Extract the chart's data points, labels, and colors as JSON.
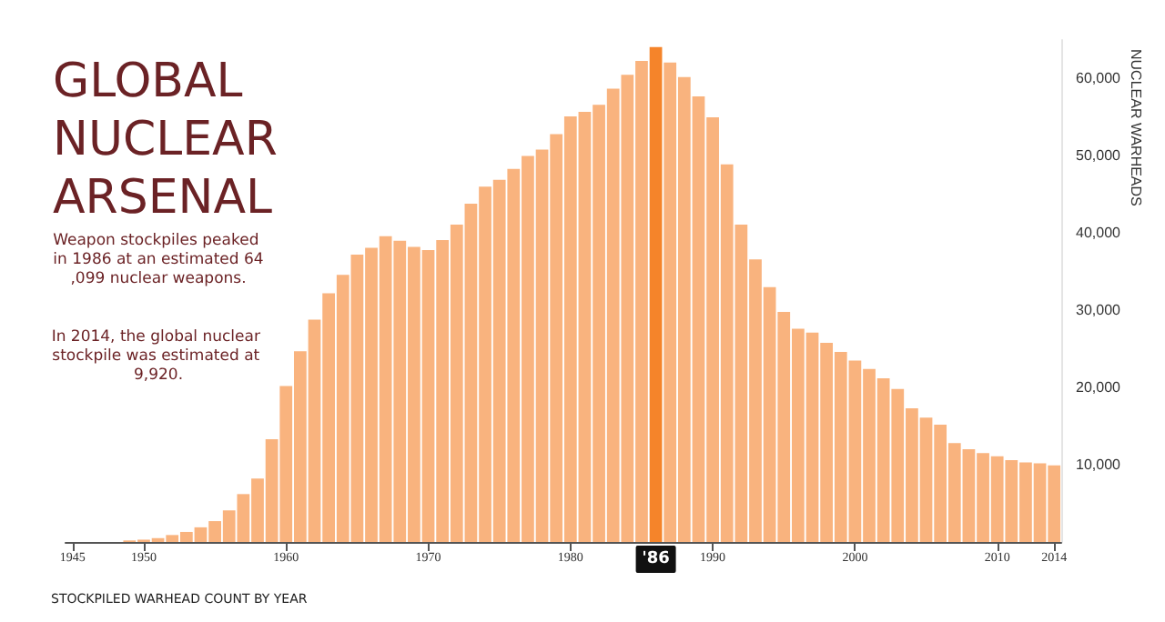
{
  "chart_data": {
    "type": "bar",
    "title": "GLOBAL\nNUCLEAR\nARSENAL",
    "ylabel": "NUCLEAR WARHEADS",
    "annotations": [
      "Weapon stockpiles peaked in 1986 at an estimated 64,099 nuclear weapons.",
      "In 2014, the global nuclear stockpile was estimated at 9,920.",
      "STOCKPILED WARHEAD COUNT BY YEAR",
      "'86"
    ],
    "categories": [
      "1945",
      null,
      null,
      null,
      null,
      "1950",
      null,
      null,
      null,
      null,
      null,
      null,
      null,
      null,
      null,
      "1960",
      null,
      null,
      null,
      null,
      null,
      null,
      null,
      null,
      null,
      "1970",
      null,
      null,
      null,
      null,
      null,
      null,
      null,
      null,
      null,
      "1980",
      null,
      null,
      null,
      null,
      null,
      null,
      null,
      null,
      null,
      "1990",
      null,
      null,
      null,
      null,
      null,
      null,
      null,
      null,
      null,
      "2000",
      null,
      null,
      null,
      null,
      null,
      null,
      null,
      null,
      null,
      "2010",
      null,
      null,
      null,
      "2014"
    ],
    "values": [
      0,
      0,
      0,
      0,
      200,
      300,
      500,
      900,
      1300,
      1900,
      2700,
      4100,
      6200,
      8200,
      13300,
      20200,
      24700,
      28800,
      32200,
      34600,
      37200,
      38100,
      39600,
      39000,
      38200,
      37800,
      39100,
      41100,
      43800,
      46000,
      46900,
      48300,
      50000,
      50800,
      52800,
      55100,
      55700,
      56600,
      58700,
      60500,
      62300,
      64099,
      62100,
      60200,
      57700,
      55000,
      48900,
      41100,
      36600,
      33000,
      29800,
      27600,
      27100,
      25800,
      24600,
      23500,
      22400,
      21200,
      19800,
      17300,
      16100,
      15200,
      12800,
      12000,
      11500,
      11100,
      10600,
      10300,
      10200,
      9920
    ],
    "colors": [
      "#f9b37e",
      "#f9b37e",
      "#f9b37e",
      "#f9b37e",
      "#f9b37e",
      "#f9b37e",
      "#f9b37e",
      "#f9b37e",
      "#f9b37e",
      "#f9b37e",
      "#f9b37e",
      "#f9b37e",
      "#f9b37e",
      "#f9b37e",
      "#f9b37e",
      "#f9b37e",
      "#f9b37e",
      "#f9b37e",
      "#f9b37e",
      "#f9b37e",
      "#f9b37e",
      "#f9b37e",
      "#f9b37e",
      "#f9b37e",
      "#f9b37e",
      "#f9b37e",
      "#f9b37e",
      "#f9b37e",
      "#f9b37e",
      "#f9b37e",
      "#f9b37e",
      "#f9b37e",
      "#f9b37e",
      "#f9b37e",
      "#f9b37e",
      "#f9b37e",
      "#f9b37e",
      "#f9b37e",
      "#f9b37e",
      "#f9b37e",
      "#f9b37e",
      "#f5842a",
      "#f9b37e",
      "#f9b37e",
      "#f9b37e",
      "#f9b37e",
      "#f9b37e",
      "#f9b37e",
      "#f9b37e",
      "#f9b37e",
      "#f9b37e",
      "#f9b37e",
      "#f9b37e",
      "#f9b37e",
      "#f9b37e",
      "#f9b37e",
      "#f9b37e",
      "#f9b37e",
      "#f9b37e",
      "#f9b37e",
      "#f9b37e",
      "#f9b37e",
      "#f9b37e",
      "#f9b37e",
      "#f9b37e",
      "#f9b37e",
      "#f9b37e",
      "#f9b37e",
      "#f9b37e",
      "#f9b37e"
    ],
    "ylim": [
      0,
      65000
    ],
    "yticks": [
      {
        "value": 10000,
        "label": "10,000"
      },
      {
        "value": 20000,
        "label": "20,000"
      },
      {
        "value": 30000,
        "label": "30,000"
      },
      {
        "value": 40000,
        "label": "40,000"
      },
      {
        "value": 50000,
        "label": "50,000"
      },
      {
        "value": 60000,
        "label": "60,000"
      }
    ],
    "grid": false
  }
}
